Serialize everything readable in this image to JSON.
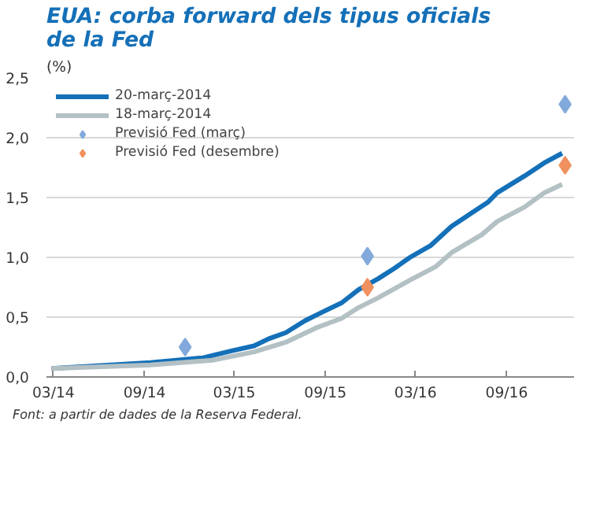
{
  "chart_data": {
    "type": "line",
    "title": "EUA: corba forward dels tipus oficials\nde la Fed",
    "ylabel": "(%)",
    "xlim": [
      "2014-02-15",
      "2017-01-15"
    ],
    "xticks": [
      {
        "value": "2014-03",
        "label": "03/14"
      },
      {
        "value": "2014-09",
        "label": "09/14"
      },
      {
        "value": "2015-03",
        "label": "03/15"
      },
      {
        "value": "2015-09",
        "label": "09/15"
      },
      {
        "value": "2016-03",
        "label": "03/16"
      },
      {
        "value": "2016-09",
        "label": "09/16"
      }
    ],
    "ylim": [
      0,
      2.5
    ],
    "yticks": [
      {
        "value": 0,
        "label": "0,0"
      },
      {
        "value": 0.5,
        "label": "0,5"
      },
      {
        "value": 1,
        "label": "1,0"
      },
      {
        "value": 1.5,
        "label": "1,5"
      },
      {
        "value": 2,
        "label": "2,0"
      },
      {
        "value": 2.5,
        "label": "2,5"
      }
    ],
    "grid": "y",
    "legend": "top left",
    "series": [
      {
        "name": "20-març-2014",
        "color": "#1470b8",
        "x": [
          "2014-02-25",
          "2014-09-13",
          "2014-12-28",
          "2015-02-25",
          "2015-04-10",
          "2015-05-10",
          "2015-06-13",
          "2015-07-22",
          "2015-08-25",
          "2015-10-04",
          "2015-11-07",
          "2015-12-16",
          "2016-01-19",
          "2016-02-19",
          "2016-04-01",
          "2016-05-13",
          "2016-06-22",
          "2016-07-25",
          "2016-08-13",
          "2016-10-07",
          "2016-11-16",
          "2016-12-22"
        ],
        "values": [
          0.07,
          0.12,
          0.16,
          0.22,
          0.26,
          0.32,
          0.37,
          0.47,
          0.54,
          0.62,
          0.73,
          0.82,
          0.91,
          1.0,
          1.1,
          1.26,
          1.37,
          1.46,
          1.54,
          1.68,
          1.79,
          1.87
        ]
      },
      {
        "name": "18-març-2014",
        "color": "#b3c0c4",
        "x": [
          "2014-02-25",
          "2014-09-13",
          "2015-01-16",
          "2015-04-10",
          "2015-06-13",
          "2015-08-13",
          "2015-10-04",
          "2015-11-07",
          "2015-12-16",
          "2016-02-19",
          "2016-04-10",
          "2016-05-13",
          "2016-07-13",
          "2016-08-13",
          "2016-10-07",
          "2016-11-16",
          "2016-12-22"
        ],
        "values": [
          0.07,
          0.1,
          0.14,
          0.21,
          0.29,
          0.41,
          0.49,
          0.58,
          0.66,
          0.81,
          0.92,
          1.04,
          1.19,
          1.3,
          1.42,
          1.54,
          1.61
        ]
      },
      {
        "name": "Previsió Fed (març)",
        "type": "scatter",
        "marker": "diamond",
        "color": "#82a9dc",
        "x": [
          "2014-11-22",
          "2015-11-25",
          "2016-12-28"
        ],
        "values": [
          0.25,
          1.01,
          2.28
        ]
      },
      {
        "name": "Previsió Fed (desembre)",
        "type": "scatter",
        "marker": "diamond",
        "color": "#f0915f",
        "x": [
          "2015-11-25",
          "2016-12-28"
        ],
        "values": [
          0.75,
          1.77
        ]
      }
    ],
    "annotations": [
      "Font: a partir de dades de la Reserva Federal."
    ]
  }
}
